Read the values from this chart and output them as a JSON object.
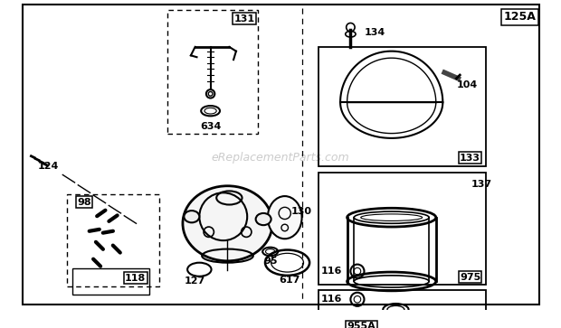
{
  "bg_color": "#ffffff",
  "watermark": "eReplacementParts.com",
  "page_label": "125A"
}
